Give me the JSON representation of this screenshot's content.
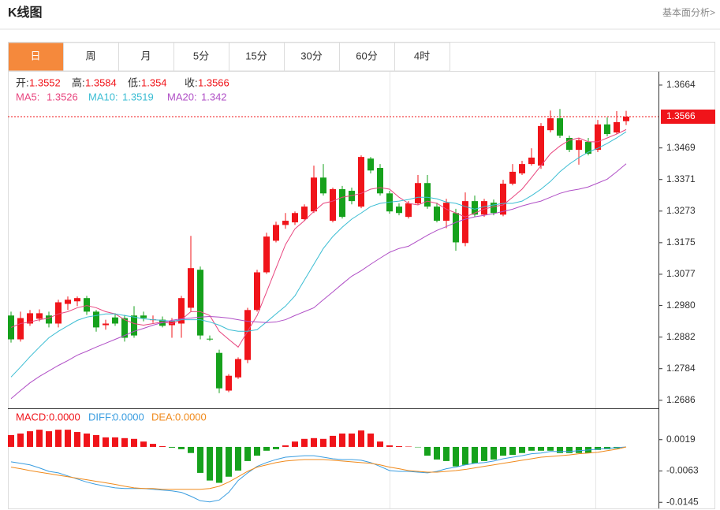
{
  "header": {
    "title": "K线图",
    "link": "基本面分析>"
  },
  "tabs": [
    "日",
    "周",
    "月",
    "5分",
    "15分",
    "30分",
    "60分",
    "4时"
  ],
  "active_tab": 0,
  "chart_data": [
    {
      "type": "candlestick",
      "up_color": "#f0141a",
      "down_color": "#16a11c",
      "ohlc_labels": [
        "开:",
        "高:",
        "低:",
        "收:"
      ],
      "ylim": [
        1.2661,
        1.3703
      ],
      "yticks": [
        1.3664,
        1.3469,
        1.3371,
        1.3273,
        1.3175,
        1.3077,
        {
          "value": 1.298,
          "label": "1.2980"
        },
        1.2882,
        1.2784,
        1.2686
      ],
      "values": [
        [
          1.2949,
          1.2961,
          1.2865,
          1.2875
        ],
        [
          1.2875,
          1.2961,
          1.2868,
          1.2941
        ],
        [
          1.2924,
          1.2966,
          1.2917,
          1.2956
        ],
        [
          1.2939,
          1.2968,
          1.2931,
          1.2956
        ],
        [
          1.2949,
          1.2961,
          1.2912,
          1.2924
        ],
        [
          1.2924,
          1.2998,
          1.2912,
          1.299
        ],
        [
          1.2985,
          1.3008,
          1.2966,
          1.2998
        ],
        [
          1.2993,
          1.3008,
          1.2978,
          1.3003
        ],
        [
          1.3003,
          1.301,
          1.2951,
          1.2961
        ],
        [
          1.2961,
          1.2966,
          1.2899,
          1.2912
        ],
        [
          1.2919,
          1.2936,
          1.2905,
          1.2924
        ],
        [
          1.2943,
          1.2956,
          1.2917,
          1.2924
        ],
        [
          1.2941,
          1.2951,
          1.2868,
          1.288
        ],
        [
          1.2949,
          1.2978,
          1.288,
          1.2887
        ],
        [
          1.2949,
          1.2961,
          1.2931,
          1.2941
        ],
        [
          1.2936,
          1.2949,
          1.2926,
          1.2937
        ],
        [
          1.2936,
          1.2946,
          1.2912,
          1.2917
        ],
        [
          1.2919,
          1.2941,
          1.288,
          1.2931
        ],
        [
          1.2924,
          1.301,
          1.288,
          1.3003
        ],
        [
          1.2973,
          1.3196,
          1.2961,
          1.3096
        ],
        [
          1.3091,
          1.3101,
          1.2875,
          1.2887
        ],
        [
          1.2877,
          1.2887,
          1.287,
          1.2875
        ],
        [
          1.2833,
          1.2843,
          1.2708,
          1.2723
        ],
        [
          1.2716,
          1.2767,
          1.2711,
          1.2762
        ],
        [
          1.2757,
          1.2819,
          1.2752,
          1.2814
        ],
        [
          1.2811,
          1.2973,
          1.2801,
          1.2966
        ],
        [
          1.2966,
          1.3091,
          1.2961,
          1.3083
        ],
        [
          1.3083,
          1.3206,
          1.3078,
          1.3194
        ],
        [
          1.3181,
          1.324,
          1.3176,
          1.323
        ],
        [
          1.323,
          1.3267,
          1.3218,
          1.3243
        ],
        [
          1.3238,
          1.3272,
          1.323,
          1.3267
        ],
        [
          1.3248,
          1.3294,
          1.3243,
          1.3287
        ],
        [
          1.3272,
          1.3414,
          1.3267,
          1.3377
        ],
        [
          1.3377,
          1.3419,
          1.3321,
          1.3328
        ],
        [
          1.3243,
          1.3346,
          1.3238,
          1.3341
        ],
        [
          1.3341,
          1.3351,
          1.325,
          1.3255
        ],
        [
          1.3336,
          1.3346,
          1.3294,
          1.3304
        ],
        [
          1.3287,
          1.3446,
          1.3282,
          1.3441
        ],
        [
          1.3436,
          1.3441,
          1.339,
          1.3399
        ],
        [
          1.3407,
          1.3419,
          1.3321,
          1.3328
        ],
        [
          1.3328,
          1.3336,
          1.3265,
          1.3272
        ],
        [
          1.3287,
          1.3297,
          1.326,
          1.3267
        ],
        [
          1.3255,
          1.3304,
          1.325,
          1.3297
        ],
        [
          1.3297,
          1.3385,
          1.3292,
          1.336
        ],
        [
          1.336,
          1.3385,
          1.328,
          1.3287
        ],
        [
          1.3287,
          1.3299,
          1.3238,
          1.3243
        ],
        [
          1.3243,
          1.3311,
          1.322,
          1.3299
        ],
        [
          1.3267,
          1.328,
          1.315,
          1.3176
        ],
        [
          1.3174,
          1.3331,
          1.3164,
          1.3304
        ],
        [
          1.3304,
          1.3321,
          1.3255,
          1.3262
        ],
        [
          1.3262,
          1.3311,
          1.3255,
          1.3304
        ],
        [
          1.3299,
          1.3309,
          1.326,
          1.3267
        ],
        [
          1.3262,
          1.337,
          1.3257,
          1.3358
        ],
        [
          1.3358,
          1.3419,
          1.3353,
          1.3395
        ],
        [
          1.339,
          1.3429,
          1.3385,
          1.3419
        ],
        [
          1.3419,
          1.3468,
          1.3414,
          1.3439
        ],
        [
          1.3414,
          1.3546,
          1.3404,
          1.3537
        ],
        [
          1.3524,
          1.3585,
          1.3517,
          1.3561
        ],
        [
          1.3561,
          1.359,
          1.35,
          1.3507
        ],
        [
          1.35,
          1.3507,
          1.3456,
          1.3463
        ],
        [
          1.3463,
          1.35,
          1.3417,
          1.3493
        ],
        [
          1.3488,
          1.35,
          1.3446,
          1.3451
        ],
        [
          1.3463,
          1.3556,
          1.3456,
          1.3542
        ],
        [
          1.3542,
          1.3564,
          1.3505,
          1.3512
        ],
        [
          1.3517,
          1.3583,
          1.3512,
          1.3549
        ],
        [
          1.3552,
          1.3584,
          1.354,
          1.3566
        ]
      ],
      "series": [
        {
          "name": "MA5:",
          "color": "#e8467f",
          "values": [
            1.2912,
            1.2924,
            1.2929,
            1.2936,
            1.2941,
            1.2954,
            1.2961,
            1.2973,
            1.298,
            1.2973,
            1.2961,
            1.2954,
            1.2936,
            1.2924,
            1.2919,
            1.2924,
            1.2929,
            1.2924,
            1.2936,
            1.2961,
            1.2961,
            1.2949,
            1.29,
            1.2875,
            1.2851,
            1.29,
            1.2949,
            1.3022,
            1.3096,
            1.3169,
            1.3218,
            1.3243,
            1.3272,
            1.3297,
            1.3304,
            1.3316,
            1.3321,
            1.3328,
            1.3341,
            1.3346,
            1.3341,
            1.3316,
            1.3297,
            1.3292,
            1.3304,
            1.3297,
            1.3279,
            1.3267,
            1.3255,
            1.3267,
            1.3279,
            1.3287,
            1.3292,
            1.3316,
            1.3341,
            1.3377,
            1.3414,
            1.3451,
            1.3475,
            1.3493,
            1.35,
            1.3488,
            1.3488,
            1.35,
            1.3512,
            1.3526
          ]
        },
        {
          "name": "MA10:",
          "color": "#3bbdd3",
          "values": [
            1.2758,
            1.2789,
            1.2821,
            1.2851,
            1.288,
            1.29,
            1.2917,
            1.2934,
            1.2944,
            1.2949,
            1.2954,
            1.2954,
            1.2949,
            1.2944,
            1.2939,
            1.2936,
            1.2934,
            1.2931,
            1.2936,
            1.2936,
            1.2936,
            1.2929,
            1.2919,
            1.2905,
            1.29,
            1.29,
            1.2905,
            1.2929,
            1.2954,
            1.2978,
            1.301,
            1.3059,
            1.3108,
            1.3157,
            1.3194,
            1.3223,
            1.3248,
            1.3267,
            1.3287,
            1.3297,
            1.3301,
            1.3304,
            1.3309,
            1.3316,
            1.3316,
            1.3311,
            1.3301,
            1.3297,
            1.3287,
            1.3279,
            1.3287,
            1.3292,
            1.3297,
            1.3297,
            1.3304,
            1.3321,
            1.3341,
            1.3365,
            1.3395,
            1.3419,
            1.3439,
            1.3456,
            1.3468,
            1.3483,
            1.35,
            1.3519
          ]
        },
        {
          "name": "MA20:",
          "color": "#b04fc6",
          "values": [
            1.2691,
            1.2716,
            1.274,
            1.276,
            1.2777,
            1.2794,
            1.2809,
            1.2826,
            1.2838,
            1.2851,
            1.2863,
            1.2875,
            1.2887,
            1.29,
            1.2909,
            1.2919,
            1.2927,
            1.2934,
            1.2939,
            1.2941,
            1.2944,
            1.2946,
            1.2944,
            1.2941,
            1.2936,
            1.2931,
            1.2929,
            1.2927,
            1.2929,
            1.2936,
            1.2949,
            1.2961,
            1.2973,
            1.2998,
            1.3022,
            1.3047,
            1.3071,
            1.3088,
            1.3108,
            1.3127,
            1.3145,
            1.3157,
            1.3164,
            1.3181,
            1.3198,
            1.3213,
            1.3225,
            1.3238,
            1.3248,
            1.3255,
            1.326,
            1.3265,
            1.3272,
            1.3279,
            1.3289,
            1.3297,
            1.3304,
            1.3316,
            1.3328,
            1.3336,
            1.3341,
            1.3348,
            1.336,
            1.3372,
            1.3395,
            1.342
          ]
        }
      ]
    },
    {
      "type": "macd",
      "ylim": [
        -0.0161,
        0.0101
      ],
      "yticks": [
        0.0019,
        -0.0063,
        -0.0145
      ],
      "series": [
        {
          "name": "MACD:",
          "last_label": "0.0000",
          "color": "#f0141a",
          "down_color": "#16a11c",
          "values": [
            0.0031,
            0.0035,
            0.0041,
            0.0045,
            0.0041,
            0.0045,
            0.0045,
            0.0039,
            0.0035,
            0.0031,
            0.0025,
            0.0025,
            0.0023,
            0.0021,
            0.0014,
            0.0008,
            0.0002,
            -0.0002,
            -0.0006,
            -0.0016,
            -0.0068,
            -0.0088,
            -0.0094,
            -0.0078,
            -0.0062,
            -0.0037,
            -0.0023,
            -0.001,
            -0.0006,
            0.0004,
            0.0014,
            0.0021,
            0.0023,
            0.0021,
            0.0029,
            0.0035,
            0.0035,
            0.0043,
            0.0035,
            0.0014,
            0.0004,
            0.0002,
            0.0001,
            -0.0001,
            -0.0023,
            -0.0033,
            -0.0037,
            -0.0051,
            -0.0047,
            -0.0043,
            -0.0037,
            -0.0033,
            -0.0023,
            -0.0021,
            -0.0016,
            -0.001,
            -0.001,
            -0.001,
            -0.0016,
            -0.0016,
            -0.0016,
            -0.0016,
            -0.0008,
            -0.0006,
            -0.0004,
            0
          ]
        },
        {
          "name": "DIFF:",
          "last_label": "0.0000",
          "color": "#3a9de0",
          "values": [
            -0.0039,
            -0.0043,
            -0.0047,
            -0.0055,
            -0.0064,
            -0.0068,
            -0.0076,
            -0.0084,
            -0.0092,
            -0.0098,
            -0.0103,
            -0.0107,
            -0.0109,
            -0.0109,
            -0.0109,
            -0.0111,
            -0.0113,
            -0.0115,
            -0.0119,
            -0.0129,
            -0.0141,
            -0.0144,
            -0.0139,
            -0.0119,
            -0.0088,
            -0.0068,
            -0.0051,
            -0.0041,
            -0.0033,
            -0.0027,
            -0.0025,
            -0.0023,
            -0.0023,
            -0.0027,
            -0.0031,
            -0.0033,
            -0.0033,
            -0.0035,
            -0.0041,
            -0.0051,
            -0.0062,
            -0.0064,
            -0.0064,
            -0.0066,
            -0.0068,
            -0.0064,
            -0.0057,
            -0.0053,
            -0.0047,
            -0.0043,
            -0.0041,
            -0.0037,
            -0.0031,
            -0.0027,
            -0.0023,
            -0.0018,
            -0.0016,
            -0.0012,
            -0.0012,
            -0.0012,
            -0.001,
            -0.0008,
            -0.0006,
            -0.0004,
            -0.0002,
            0
          ]
        },
        {
          "name": "DEA:",
          "last_label": "0.0000",
          "color": "#f08a1c",
          "values": [
            -0.0053,
            -0.0057,
            -0.0062,
            -0.0066,
            -0.007,
            -0.0074,
            -0.0078,
            -0.0082,
            -0.0086,
            -0.009,
            -0.0094,
            -0.0098,
            -0.0103,
            -0.0107,
            -0.0109,
            -0.0109,
            -0.0111,
            -0.0111,
            -0.0111,
            -0.0111,
            -0.0111,
            -0.0109,
            -0.0103,
            -0.0092,
            -0.0078,
            -0.0064,
            -0.0053,
            -0.0047,
            -0.0041,
            -0.0037,
            -0.0035,
            -0.0033,
            -0.0033,
            -0.0033,
            -0.0035,
            -0.0037,
            -0.0039,
            -0.0041,
            -0.0043,
            -0.0047,
            -0.0053,
            -0.0057,
            -0.0062,
            -0.0064,
            -0.0066,
            -0.0066,
            -0.0064,
            -0.0062,
            -0.0059,
            -0.0055,
            -0.0051,
            -0.0047,
            -0.0043,
            -0.0039,
            -0.0035,
            -0.0031,
            -0.0027,
            -0.0025,
            -0.0023,
            -0.0021,
            -0.0018,
            -0.0016,
            -0.0014,
            -0.001,
            -0.0006,
            0
          ]
        }
      ]
    }
  ]
}
